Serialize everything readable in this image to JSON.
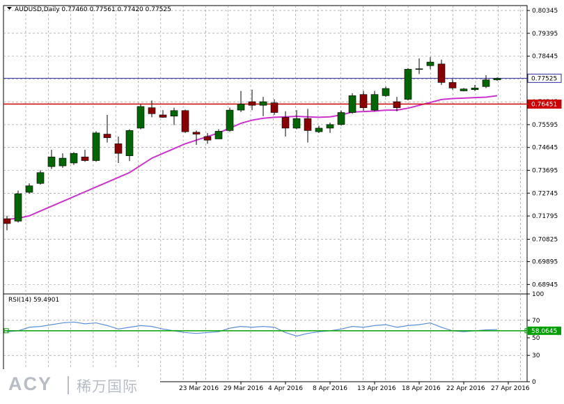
{
  "chart_data": [
    {
      "type": "candlestick",
      "title": "AUDUSD,Daily",
      "ohlc_header": "0.77460 0.77561 0.77420 0.77525",
      "ylim": [
        0.6855,
        0.8055
      ],
      "y_ticks": [
        "0.80345",
        "0.79395",
        "0.78445",
        "0.77495",
        "0.76545",
        "0.75595",
        "0.74645",
        "0.73695",
        "0.72745",
        "0.71795",
        "0.70825",
        "0.69895",
        "0.68945"
      ],
      "x_labels": [
        "23 Mar 2016",
        "29 Mar 2016",
        "4 Apr 2016",
        "8 Apr 2016",
        "13 Apr 2016",
        "18 Apr 2016",
        "22 Apr 2016",
        "27 Apr 2016"
      ],
      "x_label_bar_index": [
        17,
        21,
        25,
        29,
        33,
        37,
        41,
        45
      ],
      "grid": true,
      "bull_color": "#006600",
      "bear_color": "#8b0000",
      "candles": [
        {
          "o": 0.7168,
          "h": 0.718,
          "l": 0.712,
          "c": 0.7148
        },
        {
          "o": 0.7158,
          "h": 0.7285,
          "l": 0.7152,
          "c": 0.7272
        },
        {
          "o": 0.7278,
          "h": 0.7315,
          "l": 0.7272,
          "c": 0.7305
        },
        {
          "o": 0.7315,
          "h": 0.737,
          "l": 0.731,
          "c": 0.736
        },
        {
          "o": 0.7385,
          "h": 0.7455,
          "l": 0.7375,
          "c": 0.7425
        },
        {
          "o": 0.7388,
          "h": 0.744,
          "l": 0.738,
          "c": 0.742
        },
        {
          "o": 0.74,
          "h": 0.7445,
          "l": 0.7392,
          "c": 0.744
        },
        {
          "o": 0.7425,
          "h": 0.7455,
          "l": 0.7405,
          "c": 0.741
        },
        {
          "o": 0.741,
          "h": 0.7532,
          "l": 0.7405,
          "c": 0.7525
        },
        {
          "o": 0.752,
          "h": 0.76,
          "l": 0.7485,
          "c": 0.7505
        },
        {
          "o": 0.748,
          "h": 0.751,
          "l": 0.74,
          "c": 0.744
        },
        {
          "o": 0.743,
          "h": 0.754,
          "l": 0.7408,
          "c": 0.7535
        },
        {
          "o": 0.7545,
          "h": 0.7645,
          "l": 0.754,
          "c": 0.7635
        },
        {
          "o": 0.763,
          "h": 0.766,
          "l": 0.759,
          "c": 0.7605
        },
        {
          "o": 0.76,
          "h": 0.762,
          "l": 0.7588,
          "c": 0.759
        },
        {
          "o": 0.7595,
          "h": 0.763,
          "l": 0.7558,
          "c": 0.7618
        },
        {
          "o": 0.7618,
          "h": 0.7622,
          "l": 0.7525,
          "c": 0.753
        },
        {
          "o": 0.7528,
          "h": 0.7535,
          "l": 0.7475,
          "c": 0.752
        },
        {
          "o": 0.751,
          "h": 0.7525,
          "l": 0.748,
          "c": 0.7495
        },
        {
          "o": 0.75,
          "h": 0.754,
          "l": 0.75,
          "c": 0.7532
        },
        {
          "o": 0.7535,
          "h": 0.763,
          "l": 0.753,
          "c": 0.762
        },
        {
          "o": 0.762,
          "h": 0.77,
          "l": 0.7612,
          "c": 0.7645
        },
        {
          "o": 0.7655,
          "h": 0.7705,
          "l": 0.762,
          "c": 0.764
        },
        {
          "o": 0.764,
          "h": 0.7675,
          "l": 0.7595,
          "c": 0.7655
        },
        {
          "o": 0.765,
          "h": 0.7665,
          "l": 0.76,
          "c": 0.761
        },
        {
          "o": 0.759,
          "h": 0.7615,
          "l": 0.751,
          "c": 0.7545
        },
        {
          "o": 0.7545,
          "h": 0.762,
          "l": 0.754,
          "c": 0.7585
        },
        {
          "o": 0.7585,
          "h": 0.7625,
          "l": 0.7485,
          "c": 0.7535
        },
        {
          "o": 0.753,
          "h": 0.7555,
          "l": 0.7525,
          "c": 0.7545
        },
        {
          "o": 0.7545,
          "h": 0.7568,
          "l": 0.7525,
          "c": 0.756
        },
        {
          "o": 0.756,
          "h": 0.7618,
          "l": 0.7555,
          "c": 0.761
        },
        {
          "o": 0.761,
          "h": 0.769,
          "l": 0.7605,
          "c": 0.768
        },
        {
          "o": 0.7685,
          "h": 0.77,
          "l": 0.7618,
          "c": 0.763
        },
        {
          "o": 0.762,
          "h": 0.77,
          "l": 0.7615,
          "c": 0.7685
        },
        {
          "o": 0.768,
          "h": 0.7718,
          "l": 0.7675,
          "c": 0.771
        },
        {
          "o": 0.7655,
          "h": 0.7675,
          "l": 0.7615,
          "c": 0.763
        },
        {
          "o": 0.7665,
          "h": 0.7795,
          "l": 0.766,
          "c": 0.779
        },
        {
          "o": 0.779,
          "h": 0.7835,
          "l": 0.777,
          "c": 0.7792
        },
        {
          "o": 0.7805,
          "h": 0.784,
          "l": 0.779,
          "c": 0.782
        },
        {
          "o": 0.7812,
          "h": 0.783,
          "l": 0.7725,
          "c": 0.7735
        },
        {
          "o": 0.7735,
          "h": 0.775,
          "l": 0.7705,
          "c": 0.7712
        },
        {
          "o": 0.77,
          "h": 0.7712,
          "l": 0.7698,
          "c": 0.7708
        },
        {
          "o": 0.7705,
          "h": 0.7725,
          "l": 0.77,
          "c": 0.7712
        },
        {
          "o": 0.7718,
          "h": 0.7765,
          "l": 0.7712,
          "c": 0.7746
        },
        {
          "o": 0.7746,
          "h": 0.7756,
          "l": 0.7742,
          "c": 0.7752
        }
      ],
      "ma_color": "#cc33cc",
      "ma_values": [
        0.7165,
        0.717,
        0.718,
        0.72,
        0.722,
        0.724,
        0.726,
        0.728,
        0.73,
        0.732,
        0.734,
        0.736,
        0.739,
        0.742,
        0.744,
        0.746,
        0.748,
        0.7495,
        0.751,
        0.7525,
        0.7545,
        0.7565,
        0.7578,
        0.7586,
        0.759,
        0.7592,
        0.7594,
        0.7592,
        0.759,
        0.7592,
        0.76,
        0.7612,
        0.7614,
        0.7616,
        0.762,
        0.762,
        0.7628,
        0.764,
        0.7652,
        0.7664,
        0.7668,
        0.767,
        0.7672,
        0.7674,
        0.768
      ],
      "hlines": [
        {
          "value": 0.77525,
          "label": "0.77525",
          "color": "#2a2aa0",
          "label_bg": "#ffffff",
          "label_fg": "#000000"
        },
        {
          "value": 0.76451,
          "label": "0.76451",
          "color": "#cc0000",
          "label_bg": "#cc0000",
          "label_fg": "#ffffff"
        }
      ]
    },
    {
      "type": "line",
      "title": "RSI(14) 59.4901",
      "ylim": [
        0,
        100
      ],
      "y_ticks": [
        "100",
        "70",
        "50",
        "30",
        "0"
      ],
      "series": [
        {
          "name": "RSI(14)",
          "color": "#5b8fd9",
          "values": [
            57,
            58,
            62,
            63,
            65,
            67,
            68,
            66,
            67,
            64,
            60,
            62,
            64,
            63,
            60,
            58,
            56,
            55,
            56,
            57,
            61,
            63,
            62,
            63,
            62,
            56,
            52,
            55,
            57,
            58,
            60,
            63,
            62,
            64,
            65,
            62,
            64,
            65,
            67,
            62,
            58,
            57,
            58,
            59,
            59.49
          ]
        }
      ],
      "hlines": [
        {
          "value": 58.0645,
          "label": "58.0645",
          "color": "#00a000",
          "label_bg": "#00a000",
          "label_fg": "#ffffff"
        }
      ]
    }
  ],
  "watermark": {
    "brand": "ACY",
    "cn": "稀万国际"
  }
}
